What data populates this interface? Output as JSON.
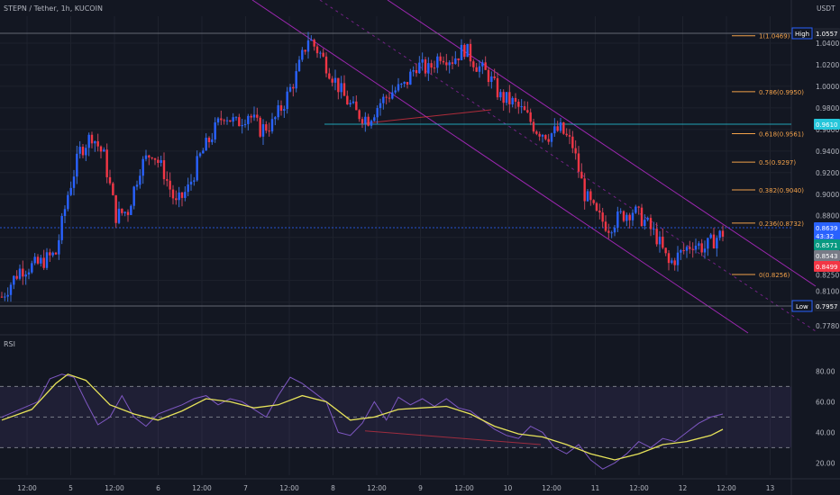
{
  "header": {
    "title": "STEPN / Tether, 1h, KUCOIN",
    "currency": "USDT",
    "rsi_label": "RSI"
  },
  "price_labels": {
    "high_tag": "High",
    "high_value": "1.0557",
    "low_tag": "Low",
    "low_value": "0.7957",
    "current": "0.8639",
    "countdown": "43:32",
    "ma1": "0.8571",
    "ma2": "0.8543",
    "ma3": "0.8499",
    "level_0961": "0.9610"
  },
  "colors": {
    "background": "#131722",
    "up": "#2962ff",
    "down": "#f23645",
    "wick_up": "#26a69a",
    "channel": "#9c27b0",
    "fib": "#f2a14a",
    "rsi_line": "#7e57c2",
    "rsi_ma": "#e7e35a",
    "current_price": "#2962ff",
    "ma1": "#089981",
    "ma2": "#787b86",
    "ma3": "#f23645",
    "level_0961": "#26c6da"
  },
  "chart_data": [
    {
      "type": "candlestick",
      "symbol": "STEPN / Tether",
      "interval": "1h",
      "exchange": "KUCOIN",
      "y_axis_ticks": [
        "1.0400",
        "1.0200",
        "1.0000",
        "0.9800",
        "0.9600",
        "0.9400",
        "0.9200",
        "0.9000",
        "0.8800",
        "0.8600",
        "0.8400",
        "0.8250",
        "0.8100",
        "0.7950",
        "0.7780"
      ],
      "x_axis_ticks": [
        "12:00",
        "5",
        "12:00",
        "6",
        "12:00",
        "7",
        "12:00",
        "8",
        "12:00",
        "9",
        "12:00",
        "10",
        "12:00",
        "11",
        "12:00",
        "12",
        "12:00",
        "13"
      ],
      "ylim": [
        0.773,
        1.065
      ],
      "high": 1.0557,
      "low": 0.7957,
      "last_price": 0.8639,
      "fibonacci": [
        {
          "label": "1(1.0469)",
          "level": 1.0469
        },
        {
          "label": "0.786(0.9950)",
          "level": 0.995
        },
        {
          "label": "0.618(0.9561)",
          "level": 0.9561
        },
        {
          "label": "0.5(0.9297)",
          "level": 0.9297
        },
        {
          "label": "0.382(0.9040)",
          "level": 0.904
        },
        {
          "label": "0.236(0.8732)",
          "level": 0.8732
        },
        {
          "label": "0(0.8256)",
          "level": 0.8256
        }
      ],
      "price_path": [
        [
          0,
          0.805
        ],
        [
          6,
          0.83
        ],
        [
          12,
          0.835
        ],
        [
          18,
          0.845
        ],
        [
          22,
          0.9
        ],
        [
          26,
          0.94
        ],
        [
          30,
          0.955
        ],
        [
          34,
          0.935
        ],
        [
          38,
          0.88
        ],
        [
          42,
          0.885
        ],
        [
          46,
          0.925
        ],
        [
          50,
          0.94
        ],
        [
          54,
          0.92
        ],
        [
          58,
          0.89
        ],
        [
          62,
          0.905
        ],
        [
          66,
          0.935
        ],
        [
          70,
          0.955
        ],
        [
          74,
          0.975
        ],
        [
          78,
          0.965
        ],
        [
          82,
          0.975
        ],
        [
          86,
          0.96
        ],
        [
          90,
          0.965
        ],
        [
          94,
          0.985
        ],
        [
          98,
          1.01
        ],
        [
          102,
          1.045
        ],
        [
          106,
          1.03
        ],
        [
          110,
          1.01
        ],
        [
          114,
          0.99
        ],
        [
          118,
          0.975
        ],
        [
          122,
          0.97
        ],
        [
          126,
          0.985
        ],
        [
          130,
          0.995
        ],
        [
          134,
          1.0
        ],
        [
          138,
          1.02
        ],
        [
          142,
          1.015
        ],
        [
          146,
          1.03
        ],
        [
          150,
          1.025
        ],
        [
          154,
          1.035
        ],
        [
          158,
          1.02
        ],
        [
          162,
          1.01
        ],
        [
          166,
          0.99
        ],
        [
          170,
          0.985
        ],
        [
          174,
          0.975
        ],
        [
          178,
          0.96
        ],
        [
          182,
          0.955
        ],
        [
          186,
          0.96
        ],
        [
          190,
          0.945
        ],
        [
          194,
          0.9
        ],
        [
          198,
          0.88
        ],
        [
          202,
          0.87
        ],
        [
          206,
          0.88
        ],
        [
          210,
          0.885
        ],
        [
          214,
          0.875
        ],
        [
          218,
          0.86
        ],
        [
          222,
          0.835
        ],
        [
          226,
          0.845
        ],
        [
          230,
          0.855
        ],
        [
          234,
          0.85
        ],
        [
          238,
          0.86
        ],
        [
          240,
          0.864
        ]
      ]
    },
    {
      "type": "line",
      "name": "RSI",
      "y_axis_ticks": [
        "80.00",
        "60.00",
        "40.00",
        "20.00"
      ],
      "ylim": [
        12,
        92
      ],
      "band": [
        30,
        70
      ],
      "midline": 50,
      "series": [
        {
          "name": "RSI",
          "points": [
            [
              0,
              50
            ],
            [
              6,
              55
            ],
            [
              12,
              60
            ],
            [
              16,
              75
            ],
            [
              20,
              78
            ],
            [
              24,
              76
            ],
            [
              28,
              60
            ],
            [
              32,
              45
            ],
            [
              36,
              50
            ],
            [
              40,
              64
            ],
            [
              44,
              50
            ],
            [
              48,
              44
            ],
            [
              52,
              52
            ],
            [
              56,
              55
            ],
            [
              60,
              58
            ],
            [
              64,
              62
            ],
            [
              68,
              64
            ],
            [
              72,
              58
            ],
            [
              76,
              62
            ],
            [
              80,
              60
            ],
            [
              84,
              55
            ],
            [
              88,
              50
            ],
            [
              92,
              64
            ],
            [
              96,
              76
            ],
            [
              100,
              72
            ],
            [
              104,
              66
            ],
            [
              108,
              60
            ],
            [
              112,
              40
            ],
            [
              116,
              38
            ],
            [
              120,
              46
            ],
            [
              124,
              60
            ],
            [
              128,
              48
            ],
            [
              132,
              63
            ],
            [
              136,
              58
            ],
            [
              140,
              62
            ],
            [
              144,
              57
            ],
            [
              148,
              62
            ],
            [
              152,
              56
            ],
            [
              156,
              54
            ],
            [
              160,
              48
            ],
            [
              164,
              42
            ],
            [
              168,
              38
            ],
            [
              172,
              36
            ],
            [
              176,
              44
            ],
            [
              180,
              40
            ],
            [
              184,
              30
            ],
            [
              188,
              26
            ],
            [
              192,
              32
            ],
            [
              196,
              22
            ],
            [
              200,
              16
            ],
            [
              204,
              20
            ],
            [
              208,
              26
            ],
            [
              212,
              34
            ],
            [
              216,
              30
            ],
            [
              220,
              36
            ],
            [
              224,
              34
            ],
            [
              228,
              40
            ],
            [
              232,
              46
            ],
            [
              236,
              50
            ],
            [
              240,
              52
            ]
          ]
        },
        {
          "name": "RSI-based MA",
          "points": [
            [
              0,
              48
            ],
            [
              10,
              55
            ],
            [
              18,
              72
            ],
            [
              22,
              78
            ],
            [
              28,
              74
            ],
            [
              36,
              58
            ],
            [
              44,
              52
            ],
            [
              52,
              48
            ],
            [
              60,
              54
            ],
            [
              68,
              62
            ],
            [
              76,
              60
            ],
            [
              84,
              56
            ],
            [
              92,
              58
            ],
            [
              100,
              64
            ],
            [
              108,
              60
            ],
            [
              116,
              48
            ],
            [
              124,
              50
            ],
            [
              132,
              55
            ],
            [
              140,
              56
            ],
            [
              148,
              57
            ],
            [
              156,
              52
            ],
            [
              164,
              44
            ],
            [
              172,
              39
            ],
            [
              180,
              37
            ],
            [
              188,
              32
            ],
            [
              196,
              26
            ],
            [
              204,
              22
            ],
            [
              212,
              26
            ],
            [
              220,
              32
            ],
            [
              228,
              34
            ],
            [
              236,
              38
            ],
            [
              240,
              42
            ]
          ]
        }
      ]
    }
  ]
}
